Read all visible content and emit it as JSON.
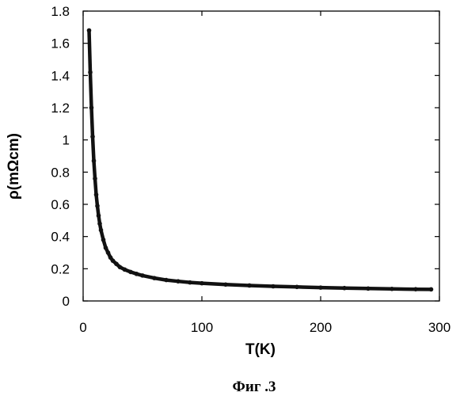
{
  "caption": "Фиг .3",
  "chart_data": {
    "type": "line",
    "title": "",
    "xlabel": "T(K)",
    "ylabel": "ρ(mΩcm)",
    "xlim": [
      0,
      300
    ],
    "ylim": [
      0,
      1.8
    ],
    "xticks": [
      "0",
      "100",
      "200",
      "300"
    ],
    "yticks": [
      "0",
      "0.2",
      "0.4",
      "0.6",
      "0.8",
      "1",
      "1.2",
      "1.4",
      "1.6",
      "1.8"
    ],
    "grid": false,
    "legend": "none",
    "series": [
      {
        "color": "#111111",
        "marker": "filled-circle",
        "x": [
          5,
          6,
          7,
          8,
          9,
          10,
          11,
          12,
          13,
          14,
          15,
          17,
          19,
          21,
          23,
          25,
          28,
          31,
          35,
          40,
          45,
          50,
          60,
          70,
          80,
          90,
          100,
          120,
          140,
          160,
          180,
          200,
          220,
          240,
          260,
          280,
          293
        ],
        "y": [
          1.68,
          1.42,
          1.2,
          1.02,
          0.87,
          0.76,
          0.66,
          0.59,
          0.53,
          0.48,
          0.44,
          0.38,
          0.33,
          0.3,
          0.27,
          0.25,
          0.23,
          0.21,
          0.195,
          0.18,
          0.168,
          0.158,
          0.142,
          0.13,
          0.122,
          0.115,
          0.11,
          0.102,
          0.096,
          0.091,
          0.087,
          0.083,
          0.08,
          0.077,
          0.075,
          0.073,
          0.072
        ]
      }
    ]
  }
}
